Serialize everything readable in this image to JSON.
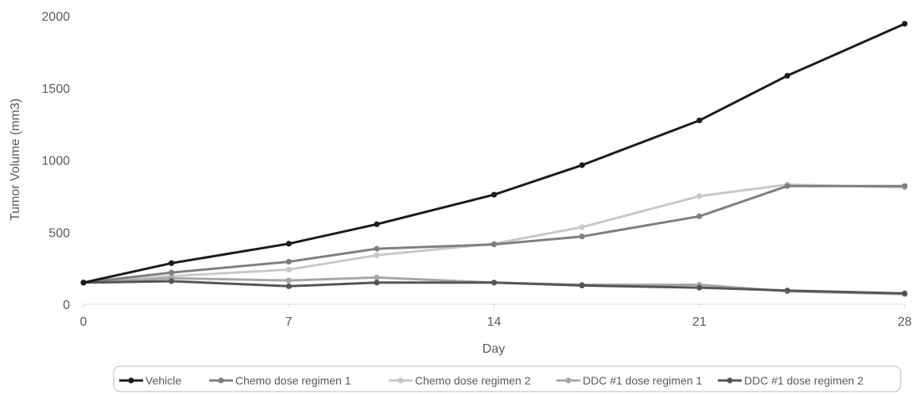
{
  "chart_data": {
    "type": "line",
    "title": "",
    "xlabel": "Day",
    "ylabel": "Tumor Volume (mm3)",
    "xlim": [
      0,
      28
    ],
    "ylim": [
      0,
      2000
    ],
    "xticks": [
      0,
      7,
      14,
      21,
      28
    ],
    "yticks": [
      0,
      500,
      1000,
      1500,
      2000
    ],
    "grid": false,
    "legend_position": "bottom",
    "x": [
      0,
      3,
      7,
      10,
      14,
      17,
      21,
      24,
      28
    ],
    "series": [
      {
        "name": "Vehicle",
        "color": "#1a1a1a",
        "values": [
          150,
          285,
          420,
          555,
          760,
          965,
          1275,
          1585,
          1945
        ]
      },
      {
        "name": "Chemo dose regimen 1",
        "color": "#7f7f7f",
        "values": [
          150,
          220,
          295,
          385,
          415,
          470,
          610,
          820,
          820
        ]
      },
      {
        "name": "Chemo dose regimen 2",
        "color": "#c8c8c8",
        "values": [
          150,
          195,
          240,
          340,
          420,
          535,
          750,
          830,
          810
        ]
      },
      {
        "name": "DDC #1 dose regimen 1",
        "color": "#a6a6a6",
        "values": [
          150,
          180,
          165,
          185,
          150,
          135,
          135,
          90,
          70
        ]
      },
      {
        "name": "DDC #1 dose regimen 2",
        "color": "#555555",
        "values": [
          150,
          160,
          125,
          150,
          150,
          130,
          115,
          95,
          75
        ]
      }
    ]
  }
}
